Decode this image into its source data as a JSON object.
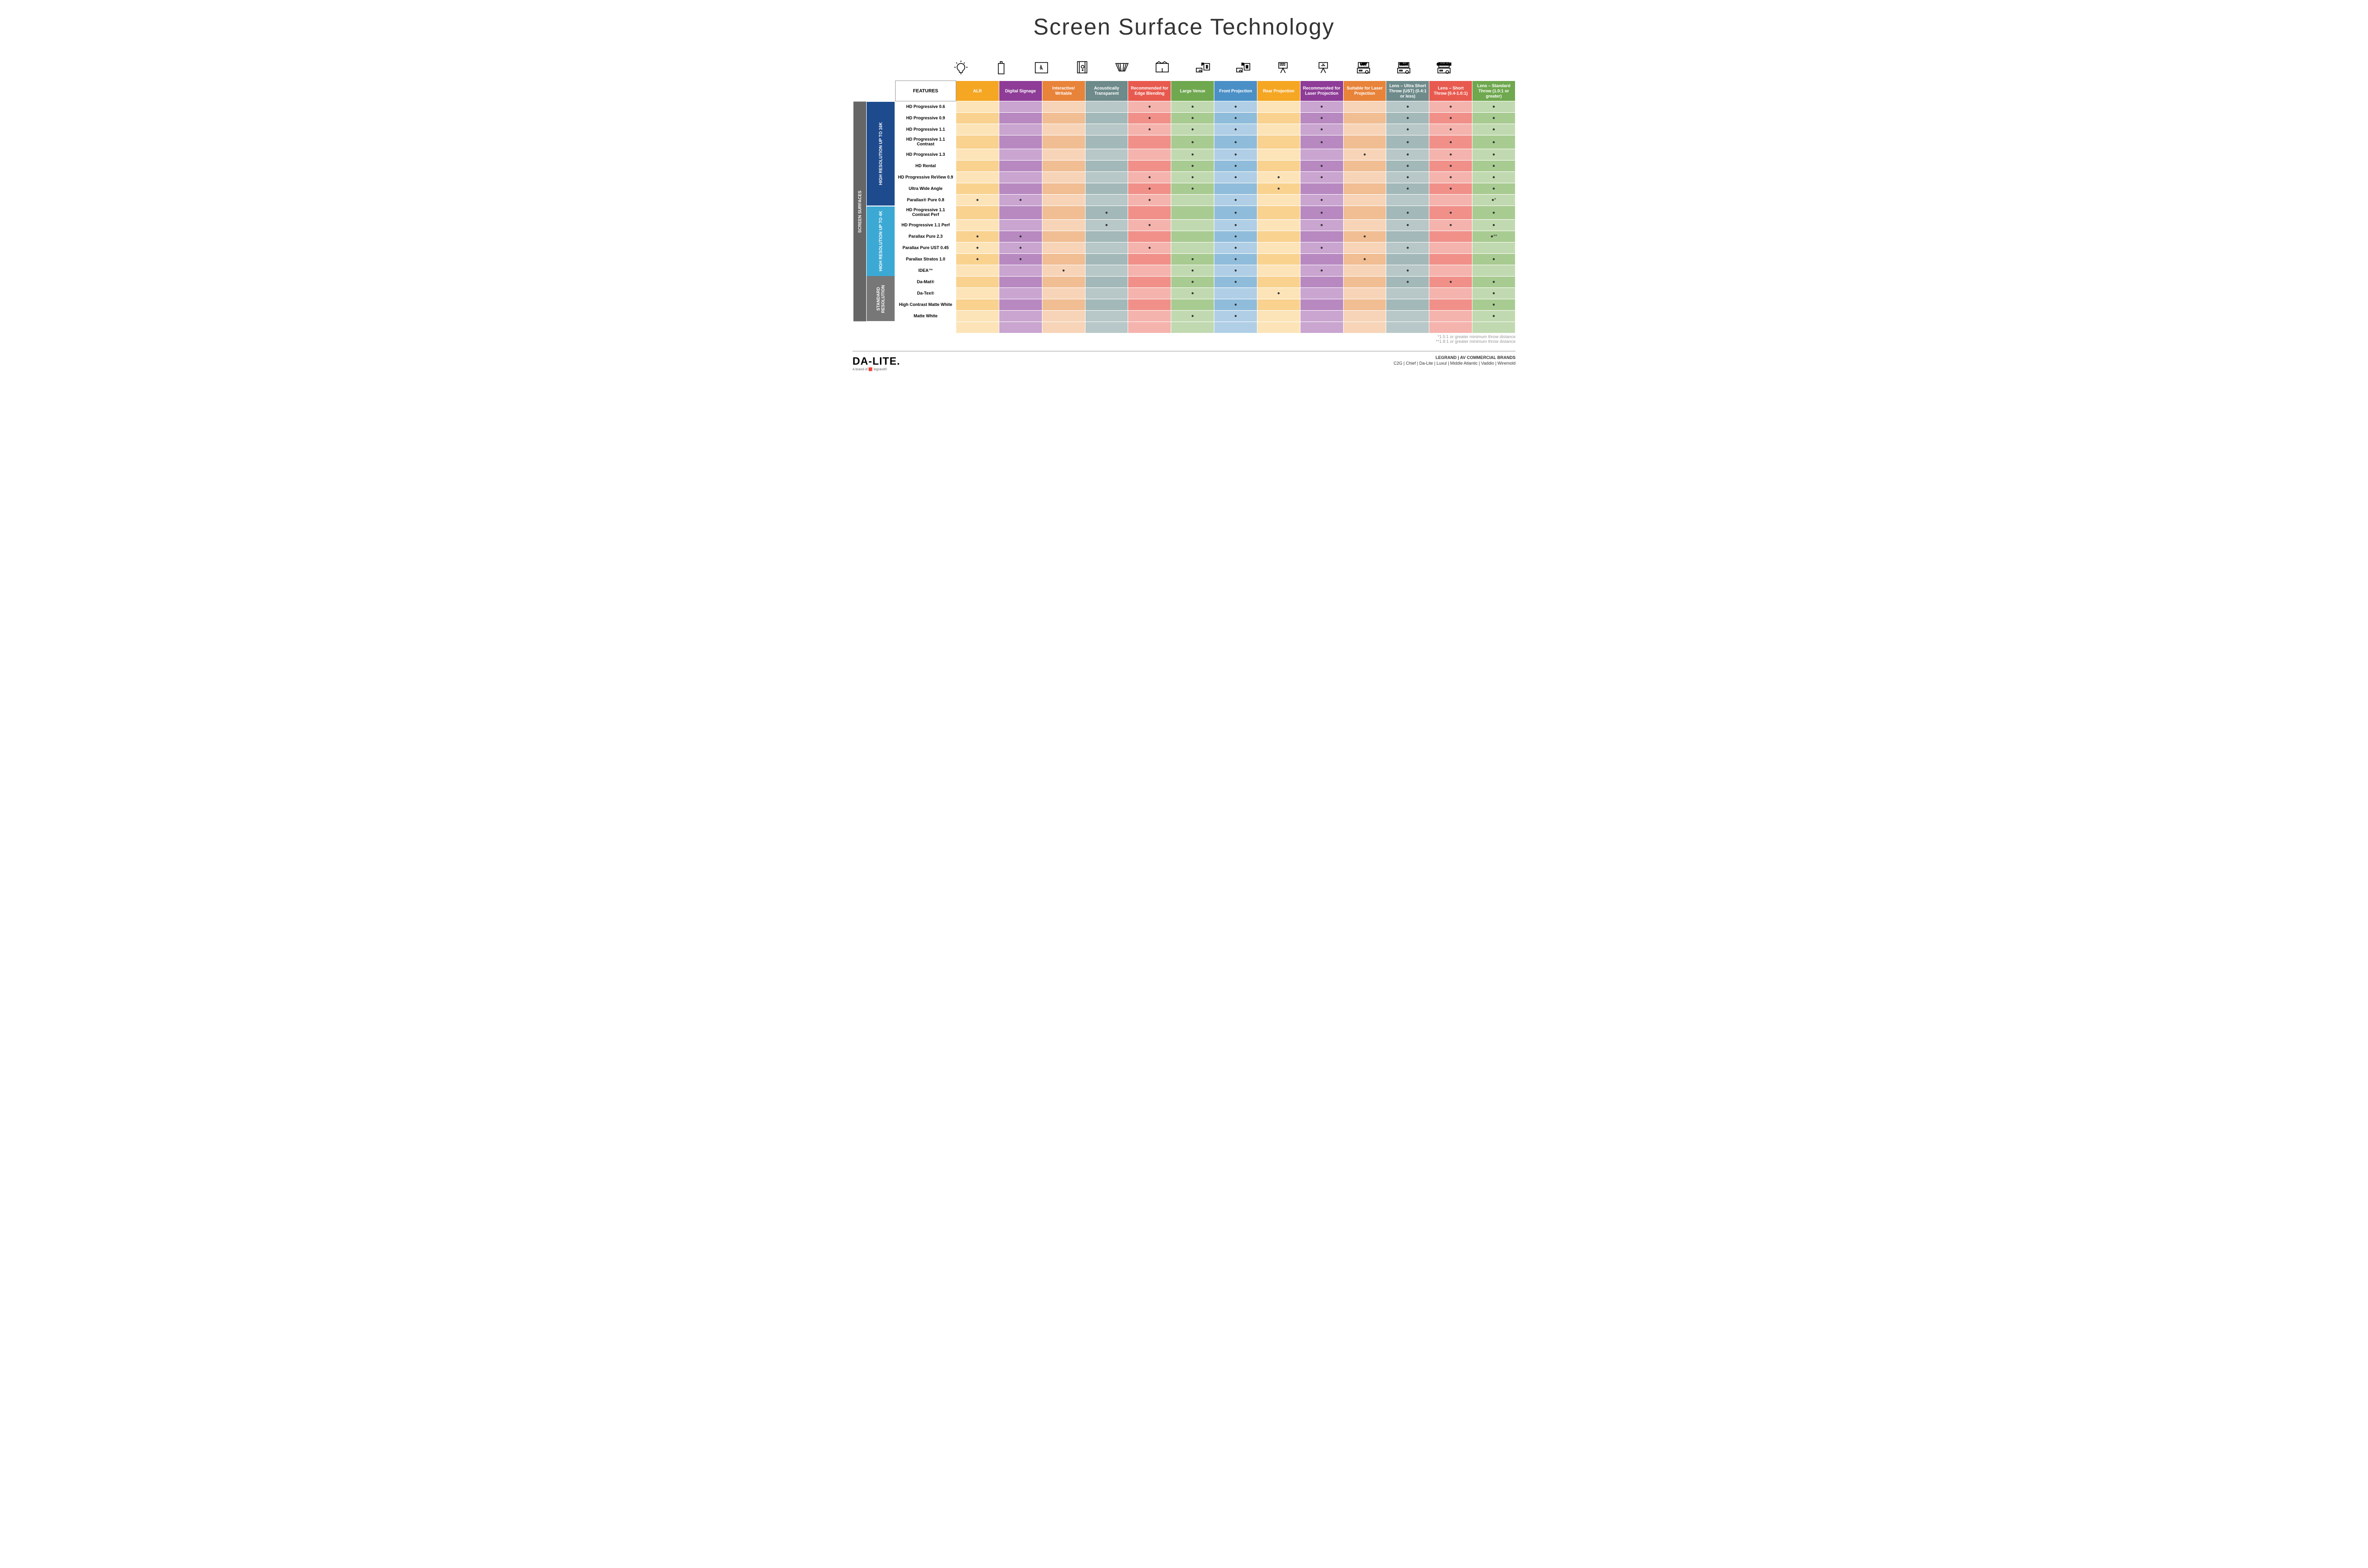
{
  "title": "Screen Surface Technology",
  "featuresLabel": "FEATURES",
  "columns": [
    {
      "label": "ALR",
      "bg": "#f5a623",
      "light": "#fce4b8",
      "alt": "#f9d28f"
    },
    {
      "label": "Digital Signage",
      "bg": "#8e3c97",
      "light": "#c9a5d0",
      "alt": "#b888c1"
    },
    {
      "label": "Interactive/ Writable",
      "bg": "#e8833a",
      "light": "#f7d4b8",
      "alt": "#f1bd92"
    },
    {
      "label": "Acoustically Transparent",
      "bg": "#6e8a8a",
      "light": "#b8c7c7",
      "alt": "#a3b8b8"
    },
    {
      "label": "Recommended for Edge Blending",
      "bg": "#e85a4f",
      "light": "#f5b3ad",
      "alt": "#f09089"
    },
    {
      "label": "Large Venue",
      "bg": "#6fa84f",
      "light": "#c1d9b0",
      "alt": "#a8cb91"
    },
    {
      "label": "Front Projection",
      "bg": "#4a90c7",
      "light": "#b0cfe6",
      "alt": "#90bcdb"
    },
    {
      "label": "Rear Projection",
      "bg": "#f5a623",
      "light": "#fce4b8",
      "alt": "#f9d28f"
    },
    {
      "label": "Recommended for Laser Projection",
      "bg": "#8e3c97",
      "light": "#c9a5d0",
      "alt": "#b888c1"
    },
    {
      "label": "Suitable for Laser Projection",
      "bg": "#e8833a",
      "light": "#f7d4b8",
      "alt": "#f1bd92"
    },
    {
      "label": "Lens – Ultra Short Throw (UST) (0.4:1 or less)",
      "bg": "#6e8a8a",
      "light": "#b8c7c7",
      "alt": "#a3b8b8"
    },
    {
      "label": "Lens – Short Throw (0.4-1.0:1)",
      "bg": "#e85a4f",
      "light": "#f5b3ad",
      "alt": "#f09089"
    },
    {
      "label": "Lens – Standard Throw (1.0:1 or greater)",
      "bg": "#6fa84f",
      "light": "#c1d9b0",
      "alt": "#a8cb91"
    }
  ],
  "groups": [
    {
      "label": "SCREEN SURFACES",
      "bg": "#666",
      "span": 19
    },
    {
      "label": "HIGH RESOLUTION UP TO 16K",
      "bg": "#1e4b8e",
      "span": 9
    },
    {
      "label": "HIGH RESOLUTION UP TO 4K",
      "bg": "#3ba9d4",
      "span": 6
    },
    {
      "label": "STANDARD RESOLUTION",
      "bg": "#777",
      "span": 4
    }
  ],
  "rows": [
    {
      "g": 1,
      "name": "HD Progressive 0.6",
      "dots": [
        0,
        0,
        0,
        0,
        1,
        1,
        1,
        0,
        1,
        0,
        1,
        1,
        1
      ]
    },
    {
      "g": 1,
      "name": "HD Progressive 0.9",
      "dots": [
        0,
        0,
        0,
        0,
        1,
        1,
        1,
        0,
        1,
        0,
        1,
        1,
        1
      ]
    },
    {
      "g": 1,
      "name": "HD Progressive 1.1",
      "dots": [
        0,
        0,
        0,
        0,
        1,
        1,
        1,
        0,
        1,
        0,
        1,
        1,
        1
      ]
    },
    {
      "g": 1,
      "name": "HD Progressive 1.1 Contrast",
      "dots": [
        0,
        0,
        0,
        0,
        0,
        1,
        1,
        0,
        1,
        0,
        1,
        1,
        1
      ]
    },
    {
      "g": 1,
      "name": "HD Progressive 1.3",
      "dots": [
        0,
        0,
        0,
        0,
        0,
        1,
        1,
        0,
        0,
        1,
        1,
        1,
        1
      ]
    },
    {
      "g": 1,
      "name": "HD Rental",
      "dots": [
        0,
        0,
        0,
        0,
        0,
        1,
        1,
        0,
        1,
        0,
        1,
        1,
        1
      ]
    },
    {
      "g": 1,
      "name": "HD Progressive ReView 0.9",
      "dots": [
        0,
        0,
        0,
        0,
        1,
        1,
        1,
        1,
        1,
        0,
        1,
        1,
        1
      ]
    },
    {
      "g": 1,
      "name": "Ultra Wide Angle",
      "dots": [
        0,
        0,
        0,
        0,
        1,
        1,
        0,
        1,
        0,
        0,
        1,
        1,
        1
      ]
    },
    {
      "g": 1,
      "name": "Parallax® Pure 0.8",
      "dots": [
        1,
        1,
        0,
        0,
        1,
        0,
        1,
        0,
        1,
        0,
        0,
        0,
        "●*"
      ]
    },
    {
      "g": 2,
      "name": "HD Progressive 1.1 Contrast Perf",
      "dots": [
        0,
        0,
        0,
        1,
        0,
        0,
        1,
        0,
        1,
        0,
        1,
        1,
        1
      ]
    },
    {
      "g": 2,
      "name": "HD Progressive 1.1 Perf",
      "dots": [
        0,
        0,
        0,
        1,
        1,
        0,
        1,
        0,
        1,
        0,
        1,
        1,
        1
      ]
    },
    {
      "g": 2,
      "name": "Parallax Pure 2.3",
      "dots": [
        1,
        1,
        0,
        0,
        0,
        0,
        1,
        0,
        0,
        1,
        0,
        0,
        "●**"
      ]
    },
    {
      "g": 2,
      "name": "Parallax Pure UST 0.45",
      "dots": [
        1,
        1,
        0,
        0,
        1,
        0,
        1,
        0,
        1,
        0,
        1,
        0,
        0
      ]
    },
    {
      "g": 2,
      "name": "Parallax Stratos 1.0",
      "dots": [
        1,
        1,
        0,
        0,
        0,
        1,
        1,
        0,
        0,
        1,
        0,
        0,
        1
      ]
    },
    {
      "g": 2,
      "name": "IDEA™",
      "dots": [
        0,
        0,
        1,
        0,
        0,
        1,
        1,
        0,
        1,
        0,
        1,
        0,
        0
      ]
    },
    {
      "g": 3,
      "name": "Da-Mat®",
      "dots": [
        0,
        0,
        0,
        0,
        0,
        1,
        1,
        0,
        0,
        0,
        1,
        1,
        1
      ]
    },
    {
      "g": 3,
      "name": "Da-Tex®",
      "dots": [
        0,
        0,
        0,
        0,
        0,
        1,
        0,
        1,
        0,
        0,
        0,
        0,
        1
      ]
    },
    {
      "g": 3,
      "name": "High Contrast Matte White",
      "dots": [
        0,
        0,
        0,
        0,
        0,
        0,
        1,
        0,
        0,
        0,
        0,
        0,
        1
      ]
    },
    {
      "g": 3,
      "name": "Matte White",
      "dots": [
        0,
        0,
        0,
        0,
        0,
        1,
        1,
        0,
        0,
        0,
        0,
        0,
        1
      ]
    }
  ],
  "footnotes": [
    "*1.5:1 or greater minimum throw distance",
    "**1.8:1 or greater minimum throw distance"
  ],
  "logo": "DA-LITE.",
  "logoSub": "A brand of 🟥 legrand®",
  "brandsTitle": "LEGRAND | AV COMMERCIAL BRANDS",
  "brandsList": "C2G  |  Chief  |  Da-Lite  |  Luxul  |  Middle Atlantic  |  Vaddio  |  Wiremold",
  "icons": [
    "M19 4v3M19 30v3M5 18h3M30 18h3M9 8l2 2M27 8l-2 2M19 10a8 8 0 0 1 4 15l-1 4h-6l-1-4a8 8 0 0 1 4-15z",
    "M13 10h12v22H13zM17 6h4v4h-4z",
    "M6 8h26v22H6zM18 16l2 4m-2-4l-2 4m2-4l0-3M16 22l3-1 3 1",
    "M10 6h16v24H10zM14 6h16v24H14zM21 14a3 3 0 1 0 0 6 3 3 0 0 0 0-6zM21 23a1 1 0 1 0 0 2 1 1 0 0 0 0-2z",
    "M6 10h26L25 26h-12zM10 10l5 16M28 10l-5 16M15 10l2 16M23 10l-2 16",
    "M6 10h26v18H6zM6 10l6-4 6 4 6-4 6 4M19 28v-8",
    "M22 10h12v14H22zM6 20h12v8H6zM14 24a2 2 0 1 0 0 4 2 2 0 0 0 0-4zM28 14h2v6h-2zM27 13v8",
    "M22 10h12v14H22zM6 20h12v8H6zM14 24a2 2 0 1 0 0 4 2 2 0 0 0 0-4zM26 14h4v6h-4zM27 15l1 2 1-2m-2 2l1 2 1-2",
    "M10 8h18v12H10zM14 30l5-10 5 10M12 10l2 1 2-1 2 1 2-1 2 1 2-1M12 13l2 1 2-1 2 1 2-1 2 1 2-1",
    "M10 8h18v12H10zM14 30l5-10 5 10M17 11l2 1 2-1M15 14l2 1 2-1 2 1 2-1",
    "M6 20h26v10H6zM10 24h6v2h-6zM26 25a3 3 0 1 0 0 6 3 3 0 0 0 0-6zM8 8h22v10H8zM13 12h12",
    "M6 20h26v10H6zM10 24h6v2h-6zM26 25a3 3 0 1 0 0 6 3 3 0 0 0 0-6zM8 8h22v10H8zM12 12h14",
    "M6 20h26v10H6zM10 24h6v2h-6zM26 25a3 3 0 1 0 0 6 3 3 0 0 0 0-6zM8 8h22v10H8zM10 12h18"
  ],
  "iconNames": [
    "alr-icon",
    "signage-icon",
    "interactive-icon",
    "acoustic-icon",
    "edge-blend-icon",
    "large-venue-icon",
    "front-proj-icon",
    "rear-proj-icon",
    "laser-rec-icon",
    "laser-suit-icon",
    "ust-icon",
    "short-throw-icon",
    "standard-throw-icon"
  ],
  "iconText": [
    "",
    "",
    "",
    "",
    "",
    "",
    "F",
    "R",
    "",
    "",
    "UST",
    "Short",
    "Standard"
  ]
}
